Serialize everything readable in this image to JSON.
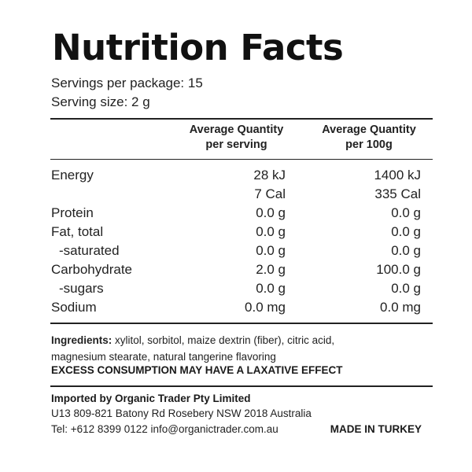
{
  "title": "Nutrition Facts",
  "servings_per_package": "Servings per package: 15",
  "serving_size": "Serving size: 2 g",
  "columns": {
    "per_serving_line1": "Average Quantity",
    "per_serving_line2": "per serving",
    "per_100g_line1": "Average Quantity",
    "per_100g_line2": "per 100g"
  },
  "rows": [
    {
      "label": "Energy",
      "per_serving": "28 kJ",
      "per_100g": "1400 kJ"
    },
    {
      "label": "",
      "per_serving": "7 Cal",
      "per_100g": "335 Cal"
    },
    {
      "label": "Protein",
      "per_serving": "0.0 g",
      "per_100g": "0.0 g"
    },
    {
      "label": "Fat, total",
      "per_serving": "0.0 g",
      "per_100g": "0.0 g"
    },
    {
      "label": "-saturated",
      "per_serving": "0.0 g",
      "per_100g": "0.0 g"
    },
    {
      "label": "Carbohydrate",
      "per_serving": "2.0 g",
      "per_100g": "100.0 g"
    },
    {
      "label": "-sugars",
      "per_serving": "0.0 g",
      "per_100g": "0.0 g"
    },
    {
      "label": "Sodium",
      "per_serving": "0.0 mg",
      "per_100g": "0.0 mg"
    }
  ],
  "ingredients": {
    "label": "Ingredients:",
    "text_line1": "xylitol, sorbitol, maize dextrin (fiber), citric acid,",
    "text_line2": "magnesium stearate, natural tangerine flavoring"
  },
  "warning": "EXCESS CONSUMPTION MAY HAVE A LAXATIVE EFFECT",
  "importer": {
    "heading": "Imported by Organic Trader Pty Limited",
    "address": "U13 809-821 Batony Rd Rosebery NSW 2018 Australia",
    "contact": "Tel: +612 8399 0122 info@organictrader.com.au"
  },
  "made_in": "MADE IN TURKEY"
}
